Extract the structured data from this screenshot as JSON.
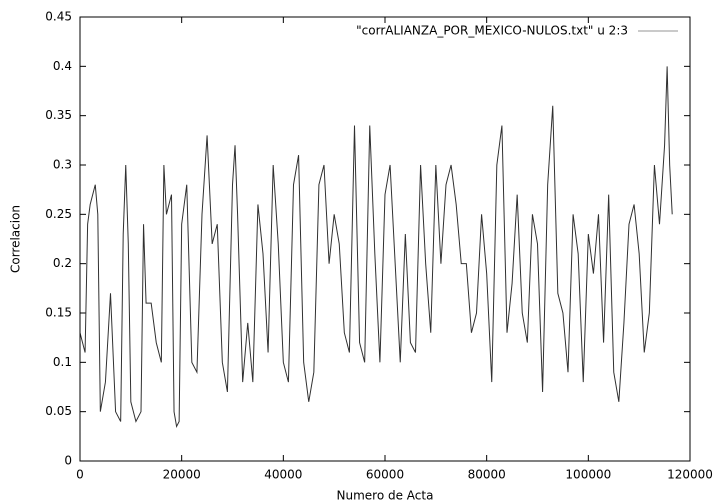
{
  "chart_data": {
    "type": "line",
    "xlabel": "Numero de Acta",
    "ylabel": "Correlacion",
    "x": [
      0,
      1000,
      1500,
      2000,
      3000,
      3500,
      4000,
      5000,
      6000,
      7000,
      8000,
      8500,
      9000,
      9500,
      10000,
      11000,
      12000,
      12500,
      13000,
      14000,
      15000,
      16000,
      16500,
      17000,
      18000,
      18500,
      19000,
      19500,
      20000,
      21000,
      22000,
      23000,
      24000,
      25000,
      26000,
      27000,
      28000,
      29000,
      30000,
      30500,
      31000,
      32000,
      33000,
      34000,
      35000,
      36000,
      37000,
      38000,
      39000,
      40000,
      41000,
      42000,
      43000,
      44000,
      45000,
      46000,
      47000,
      48000,
      49000,
      50000,
      51000,
      52000,
      53000,
      54000,
      55000,
      56000,
      57000,
      58000,
      59000,
      60000,
      61000,
      62000,
      63000,
      64000,
      65000,
      66000,
      67000,
      68000,
      69000,
      70000,
      71000,
      72000,
      73000,
      74000,
      75000,
      76000,
      77000,
      78000,
      79000,
      80000,
      81000,
      82000,
      83000,
      84000,
      85000,
      86000,
      87000,
      88000,
      89000,
      90000,
      91000,
      92000,
      93000,
      94000,
      95000,
      96000,
      97000,
      98000,
      99000,
      100000,
      101000,
      102000,
      103000,
      104000,
      105000,
      106000,
      107000,
      108000,
      109000,
      110000,
      111000,
      112000,
      113000,
      114000,
      115000,
      115500,
      116000,
      116500
    ],
    "series": [
      {
        "name": "\"corrALIANZA_POR_MEXICO-NULOS.txt\" u 2:3",
        "color": "#303030",
        "values": [
          0.13,
          0.11,
          0.24,
          0.26,
          0.28,
          0.25,
          0.05,
          0.08,
          0.17,
          0.05,
          0.04,
          0.23,
          0.3,
          0.22,
          0.06,
          0.04,
          0.05,
          0.24,
          0.16,
          0.16,
          0.12,
          0.1,
          0.3,
          0.25,
          0.27,
          0.05,
          0.035,
          0.04,
          0.24,
          0.28,
          0.1,
          0.09,
          0.25,
          0.33,
          0.22,
          0.24,
          0.1,
          0.07,
          0.28,
          0.32,
          0.25,
          0.08,
          0.14,
          0.08,
          0.26,
          0.21,
          0.11,
          0.3,
          0.22,
          0.1,
          0.08,
          0.28,
          0.31,
          0.1,
          0.06,
          0.09,
          0.28,
          0.3,
          0.2,
          0.25,
          0.22,
          0.13,
          0.11,
          0.34,
          0.12,
          0.1,
          0.34,
          0.21,
          0.1,
          0.27,
          0.3,
          0.2,
          0.1,
          0.23,
          0.12,
          0.11,
          0.3,
          0.2,
          0.13,
          0.3,
          0.2,
          0.28,
          0.3,
          0.26,
          0.2,
          0.2,
          0.13,
          0.15,
          0.25,
          0.19,
          0.08,
          0.3,
          0.34,
          0.13,
          0.18,
          0.27,
          0.15,
          0.12,
          0.25,
          0.22,
          0.07,
          0.28,
          0.36,
          0.17,
          0.15,
          0.09,
          0.25,
          0.21,
          0.08,
          0.23,
          0.19,
          0.25,
          0.12,
          0.27,
          0.09,
          0.06,
          0.14,
          0.24,
          0.26,
          0.21,
          0.11,
          0.15,
          0.3,
          0.24,
          0.32,
          0.4,
          0.3,
          0.25
        ]
      }
    ],
    "xlim": [
      0,
      120000
    ],
    "xticks": [
      0,
      20000,
      40000,
      60000,
      80000,
      100000,
      120000
    ],
    "ylim": [
      0,
      0.45
    ],
    "yticks": [
      0,
      0.05,
      0.1,
      0.15,
      0.2,
      0.25,
      0.3,
      0.35,
      0.4,
      0.45
    ],
    "legend": "top-right"
  }
}
